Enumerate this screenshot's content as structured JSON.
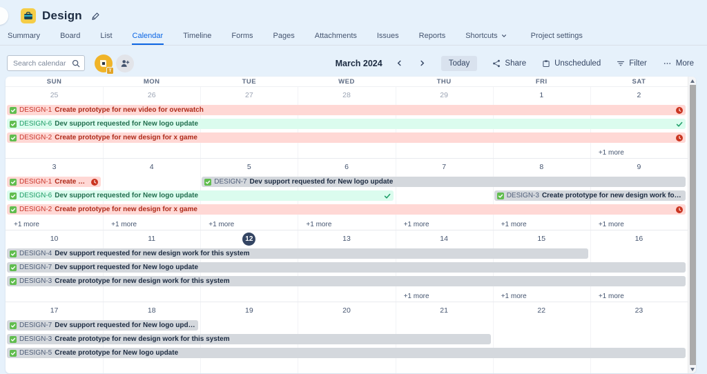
{
  "header": {
    "project_title": "Design",
    "icons": {
      "project": "briefcase-icon",
      "edit": "pen-icon"
    }
  },
  "tabs": {
    "items": [
      "Summary",
      "Board",
      "List",
      "Calendar",
      "Timeline",
      "Forms",
      "Pages",
      "Attachments",
      "Issues",
      "Reports"
    ],
    "shortcuts_label": "Shortcuts",
    "project_settings_label": "Project settings",
    "active": "Calendar"
  },
  "toolbar": {
    "search_placeholder": "Search calendar",
    "avatar_badge": "T",
    "month_label": "March 2024",
    "today_label": "Today",
    "share_label": "Share",
    "unscheduled_label": "Unscheduled",
    "filter_label": "Filter",
    "more_label": "More"
  },
  "calendar": {
    "day_names": [
      "SUN",
      "MON",
      "TUE",
      "WED",
      "THU",
      "FRI",
      "SAT"
    ],
    "more_label": "+1 more",
    "today_date": "12",
    "weeks": [
      {
        "dates": [
          {
            "label": "25",
            "muted": true
          },
          {
            "label": "26",
            "muted": true
          },
          {
            "label": "27",
            "muted": true
          },
          {
            "label": "28",
            "muted": true
          },
          {
            "label": "29",
            "muted": true
          },
          {
            "label": "1"
          },
          {
            "label": "2"
          }
        ],
        "lanes": [
          [
            {
              "key": "DESIGN-1",
              "summary": "Create prototype for new video for overwatch",
              "variant": "overdue",
              "start": 1,
              "span": 7,
              "end_icon": "overdue"
            }
          ],
          [
            {
              "key": "DESIGN-6",
              "summary": "Dev support requested for New logo update",
              "variant": "done",
              "start": 1,
              "span": 7,
              "end_icon": "check"
            }
          ],
          [
            {
              "key": "DESIGN-2",
              "summary": "Create prototype for new design for x game",
              "variant": "overdue",
              "start": 1,
              "span": 7,
              "end_icon": "overdue"
            }
          ]
        ],
        "more_cols": [
          7
        ]
      },
      {
        "dates": [
          {
            "label": "3"
          },
          {
            "label": "4"
          },
          {
            "label": "5"
          },
          {
            "label": "6"
          },
          {
            "label": "7"
          },
          {
            "label": "8"
          },
          {
            "label": "9"
          }
        ],
        "lanes": [
          [
            {
              "key": "DESIGN-1",
              "summary": "Create prototy...",
              "variant": "overdue",
              "start": 1,
              "span": 1,
              "end_icon": "overdue"
            },
            {
              "key": "DESIGN-7",
              "summary": "Dev support requested for New logo update",
              "variant": "default",
              "start": 3,
              "span": 5
            }
          ],
          [
            {
              "key": "DESIGN-6",
              "summary": "Dev support requested for New logo update",
              "variant": "done",
              "start": 1,
              "span": 4,
              "end_icon": "check"
            },
            {
              "key": "DESIGN-3",
              "summary": "Create prototype for new design work for this system",
              "variant": "default",
              "start": 6,
              "span": 2
            }
          ],
          [
            {
              "key": "DESIGN-2",
              "summary": "Create prototype for new design for x game",
              "variant": "overdue",
              "start": 1,
              "span": 7,
              "end_icon": "overdue"
            }
          ]
        ],
        "more_cols": [
          1,
          2,
          3,
          4,
          5,
          6,
          7
        ]
      },
      {
        "dates": [
          {
            "label": "10"
          },
          {
            "label": "11"
          },
          {
            "label": "12",
            "today": true
          },
          {
            "label": "13"
          },
          {
            "label": "14"
          },
          {
            "label": "15"
          },
          {
            "label": "16"
          }
        ],
        "lanes": [
          [
            {
              "key": "DESIGN-4",
              "summary": "Dev support requested for new design work for this system",
              "variant": "default",
              "start": 1,
              "span": 6
            }
          ],
          [
            {
              "key": "DESIGN-7",
              "summary": "Dev support requested for New logo update",
              "variant": "default",
              "start": 1,
              "span": 7
            }
          ],
          [
            {
              "key": "DESIGN-3",
              "summary": "Create prototype for new design work for this system",
              "variant": "default",
              "start": 1,
              "span": 7
            }
          ]
        ],
        "more_cols": [
          5,
          6,
          7
        ]
      },
      {
        "dates": [
          {
            "label": "17"
          },
          {
            "label": "18"
          },
          {
            "label": "19"
          },
          {
            "label": "20"
          },
          {
            "label": "21"
          },
          {
            "label": "22"
          },
          {
            "label": "23"
          }
        ],
        "lanes": [
          [
            {
              "key": "DESIGN-7",
              "summary": "Dev support requested for New logo update",
              "variant": "default",
              "start": 1,
              "span": 2
            }
          ],
          [
            {
              "key": "DESIGN-3",
              "summary": "Create prototype for new design work for this system",
              "variant": "default",
              "start": 1,
              "span": 5
            }
          ],
          [
            {
              "key": "DESIGN-5",
              "summary": "Create prototype for New logo update",
              "variant": "default",
              "start": 1,
              "span": 7
            }
          ]
        ],
        "more_cols": []
      }
    ]
  },
  "colors": {
    "page_background": "#e6f1fb",
    "accent_blue": "#0c66e4",
    "overdue_bg": "#ffd8d5",
    "overdue_text": "#ae2a19",
    "done_bg": "#dbfcee",
    "done_text": "#216e4e",
    "neutral_bg": "#d4d8dd",
    "neutral_text": "#1c2b41",
    "today_badge": "#344563",
    "task_icon_green": "#61bd4f",
    "project_icon_yellow": "#f5cd47"
  }
}
